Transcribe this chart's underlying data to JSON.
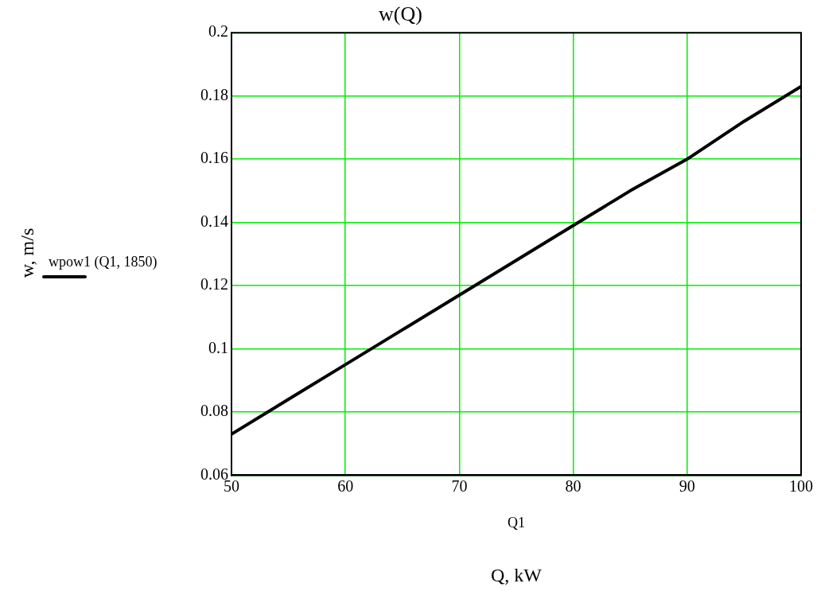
{
  "chart_data": {
    "type": "line",
    "title": "w(Q)",
    "xlabel": "Q1",
    "annotations": [
      "Q, kW",
      "w, m/s"
    ],
    "x": [
      50,
      55,
      60,
      65,
      70,
      75,
      80,
      85,
      90,
      95,
      100
    ],
    "series": [
      {
        "name": "wpow1 (Q1, 1850)",
        "color": "#000000",
        "values": [
          0.073,
          0.084,
          0.095,
          0.106,
          0.117,
          0.128,
          0.139,
          0.15,
          0.16,
          0.172,
          0.183
        ]
      }
    ],
    "xlim": [
      50,
      100
    ],
    "xticks": [
      50,
      60,
      70,
      80,
      90,
      100
    ],
    "ylim": [
      0.06,
      0.2
    ],
    "yticks": [
      0.06,
      0.08,
      0.1,
      0.12,
      0.14,
      0.16,
      0.18,
      0.2
    ],
    "grid": true,
    "legend": "left",
    "marker": "none",
    "line_style": "solid"
  }
}
